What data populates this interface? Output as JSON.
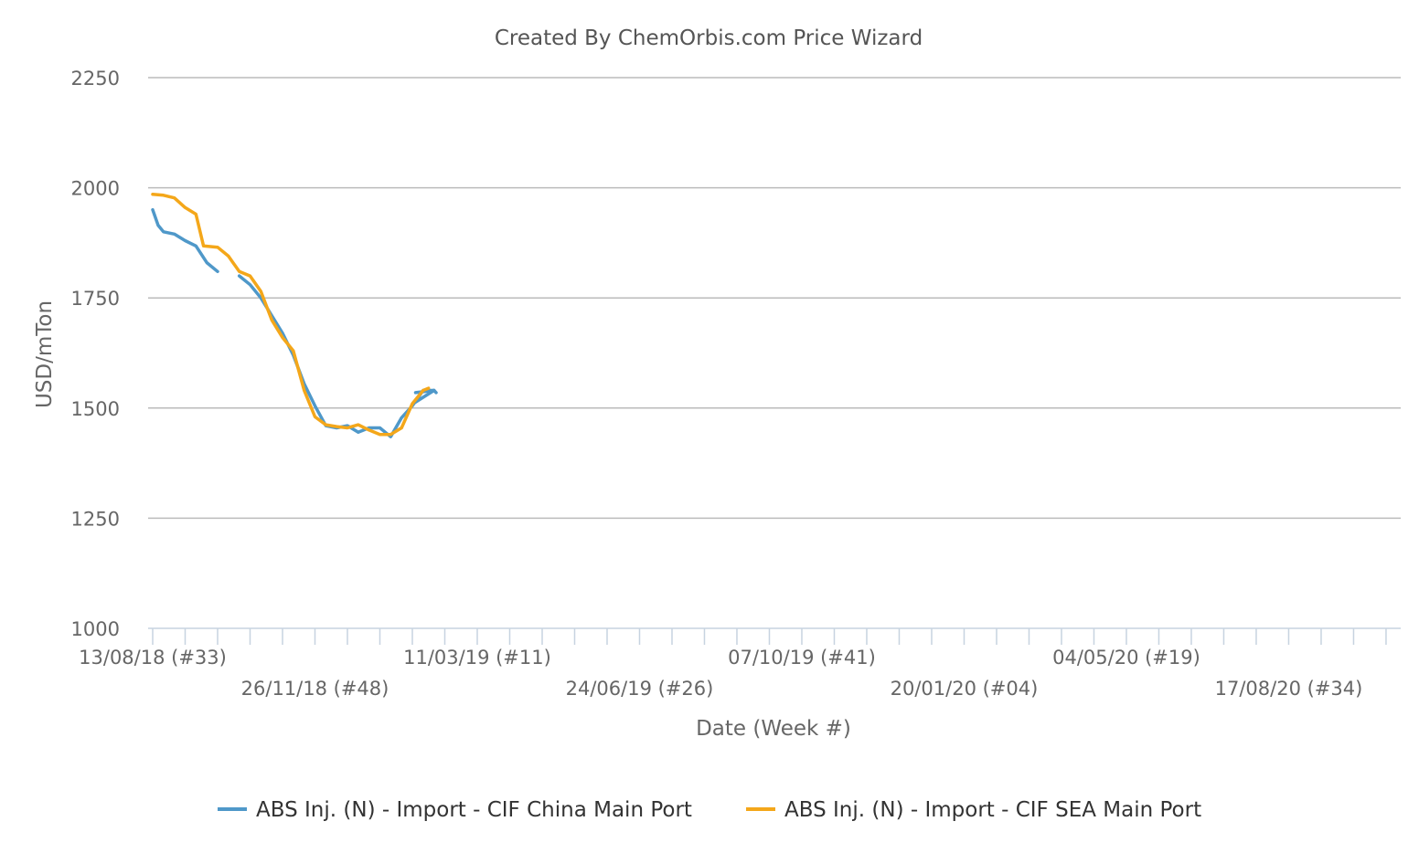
{
  "chart_data": {
    "type": "line",
    "title": "Created By ChemOrbis.com Price Wizard",
    "xlabel": "Date (Week #)",
    "ylabel": "USD/mTon",
    "ylim": [
      1000,
      2250
    ],
    "yticks": [
      1000,
      1250,
      1500,
      1750,
      2000,
      2250
    ],
    "x_tick_labels": [
      "13/08/18 (#33)",
      "26/11/18 (#48)",
      "11/03/19 (#11)",
      "24/06/19 (#26)",
      "07/10/19 (#41)",
      "20/01/20 (#04)",
      "04/05/20 (#19)",
      "17/08/20 (#34)"
    ],
    "x_tick_weeks": [
      0,
      15,
      30,
      45,
      60,
      75,
      90,
      105
    ],
    "x_range_weeks": [
      0,
      115
    ],
    "x_unit": "weeks since 13/08/18",
    "grid": true,
    "legend_position": "bottom",
    "series": [
      {
        "name": "ABS Inj. (N) - Import - CIF China Main Port",
        "color": "#4f98c9",
        "points": [
          [
            0,
            1950
          ],
          [
            0.5,
            1915
          ],
          [
            1,
            1900
          ],
          [
            2,
            1895
          ],
          [
            3,
            1880
          ],
          [
            4,
            1868
          ],
          [
            5,
            1830
          ],
          [
            6,
            1810
          ],
          null,
          [
            8,
            1800
          ],
          [
            9,
            1780
          ],
          [
            10,
            1750
          ],
          [
            11,
            1710
          ],
          [
            12,
            1670
          ],
          [
            13,
            1620
          ],
          [
            14,
            1555
          ],
          [
            15,
            1505
          ],
          [
            16,
            1460
          ],
          [
            17,
            1455
          ],
          [
            18,
            1460
          ],
          [
            19,
            1445
          ],
          [
            20,
            1455
          ],
          [
            21,
            1455
          ],
          [
            22,
            1435
          ],
          [
            23,
            1478
          ],
          [
            24,
            1505
          ],
          [
            25,
            1540
          ],
          [
            26,
            1540
          ],
          [
            24.2,
            1512
          ],
          null,
          [
            26,
            1540
          ],
          [
            24.3,
            1535
          ],
          null,
          [
            26,
            1540
          ],
          [
            26.2,
            1535
          ]
        ]
      },
      {
        "name": "ABS Inj. (N) - Import - CIF SEA Main Port",
        "color": "#f4a71a",
        "points": [
          [
            0,
            1985
          ],
          [
            1,
            1983
          ],
          [
            2,
            1977
          ],
          [
            3,
            1955
          ],
          [
            4,
            1940
          ],
          [
            4.7,
            1868
          ],
          [
            6,
            1865
          ],
          [
            7,
            1845
          ],
          [
            8,
            1810
          ],
          [
            9,
            1800
          ],
          [
            10,
            1765
          ],
          [
            11,
            1700
          ],
          [
            12,
            1660
          ],
          [
            13,
            1630
          ],
          [
            14,
            1540
          ],
          [
            15,
            1480
          ],
          [
            16,
            1462
          ],
          [
            17,
            1458
          ],
          [
            18,
            1455
          ],
          [
            19,
            1462
          ],
          [
            20,
            1450
          ],
          [
            21,
            1440
          ],
          [
            22,
            1440
          ],
          [
            23,
            1455
          ],
          [
            24,
            1510
          ],
          [
            25,
            1540
          ],
          [
            25.5,
            1545
          ]
        ]
      }
    ]
  }
}
